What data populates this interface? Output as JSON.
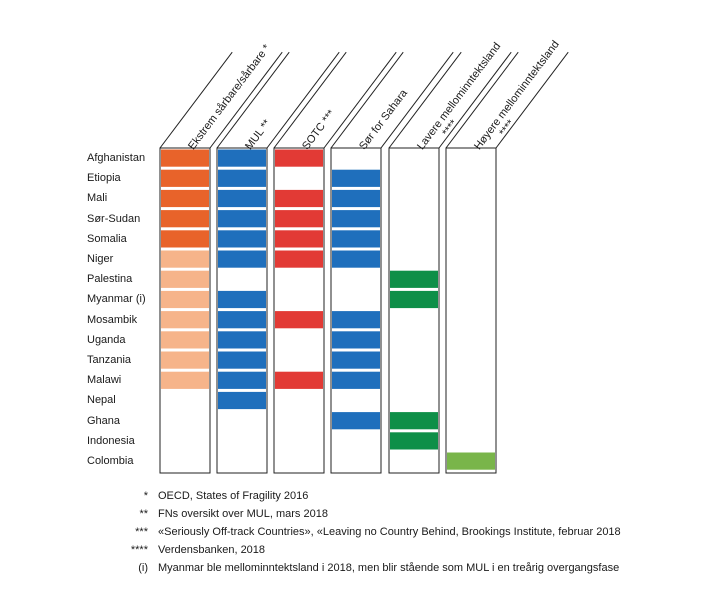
{
  "columns": [
    {
      "label": "Ekstrem sårbare/sårbare *",
      "label_line2": ""
    },
    {
      "label": "MUL **",
      "label_line2": ""
    },
    {
      "label": "SOTC ***",
      "label_line2": ""
    },
    {
      "label": "Sør for Sahara",
      "label_line2": ""
    },
    {
      "label": "Lavere mellominntektsland",
      "label_line2": "****"
    },
    {
      "label": "Høyere mellominntektsland",
      "label_line2": "****"
    }
  ],
  "colors": {
    "extreme": "#E8632A",
    "fragile": "#F6B48A",
    "mul": "#1F6FBC",
    "sotc": "#E23A35",
    "sahara": "#1F6FBC",
    "lower": "#0E8F48",
    "upper": "#79B54A"
  },
  "countries": [
    {
      "name": "Afghanistan",
      "cells": [
        "extreme",
        "mul",
        "sotc",
        null,
        null,
        null
      ]
    },
    {
      "name": "Etiopia",
      "cells": [
        "extreme",
        "mul",
        null,
        "sahara",
        null,
        null
      ]
    },
    {
      "name": "Mali",
      "cells": [
        "extreme",
        "mul",
        "sotc",
        "sahara",
        null,
        null
      ]
    },
    {
      "name": "Sør-Sudan",
      "cells": [
        "extreme",
        "mul",
        "sotc",
        "sahara",
        null,
        null
      ]
    },
    {
      "name": "Somalia",
      "cells": [
        "extreme",
        "mul",
        "sotc",
        "sahara",
        null,
        null
      ]
    },
    {
      "name": "Niger",
      "cells": [
        "fragile",
        "mul",
        "sotc",
        "sahara",
        null,
        null
      ]
    },
    {
      "name": "Palestina",
      "cells": [
        "fragile",
        null,
        null,
        null,
        "lower",
        null
      ]
    },
    {
      "name": "Myanmar (i)",
      "cells": [
        "fragile",
        "mul",
        null,
        null,
        "lower",
        null
      ]
    },
    {
      "name": "Mosambik",
      "cells": [
        "fragile",
        "mul",
        "sotc",
        "sahara",
        null,
        null
      ]
    },
    {
      "name": "Uganda",
      "cells": [
        "fragile",
        "mul",
        null,
        "sahara",
        null,
        null
      ]
    },
    {
      "name": "Tanzania",
      "cells": [
        "fragile",
        "mul",
        null,
        "sahara",
        null,
        null
      ]
    },
    {
      "name": "Malawi",
      "cells": [
        "fragile",
        "mul",
        "sotc",
        "sahara",
        null,
        null
      ]
    },
    {
      "name": "Nepal",
      "cells": [
        null,
        "mul",
        null,
        null,
        null,
        null
      ]
    },
    {
      "name": "Ghana",
      "cells": [
        null,
        null,
        null,
        "sahara",
        "lower",
        null
      ]
    },
    {
      "name": "Indonesia",
      "cells": [
        null,
        null,
        null,
        null,
        "lower",
        null
      ]
    },
    {
      "name": "Colombia",
      "cells": [
        null,
        null,
        null,
        null,
        null,
        "upper"
      ]
    }
  ],
  "notes": [
    {
      "mark": "*",
      "text": "OECD, States of Fragility 2016"
    },
    {
      "mark": "**",
      "text": "FNs oversikt over MUL, mars 2018"
    },
    {
      "mark": "***",
      "text": "«Seriously Off-track Countries», «Leaving no Country Behind, Brookings Institute, februar 2018"
    },
    {
      "mark": "****",
      "text": "Verdensbanken, 2018"
    },
    {
      "mark": "(i)",
      "text": "Myanmar ble mellominntektsland i 2018, men blir stående som MUL i en treårig overgangsfase"
    }
  ]
}
